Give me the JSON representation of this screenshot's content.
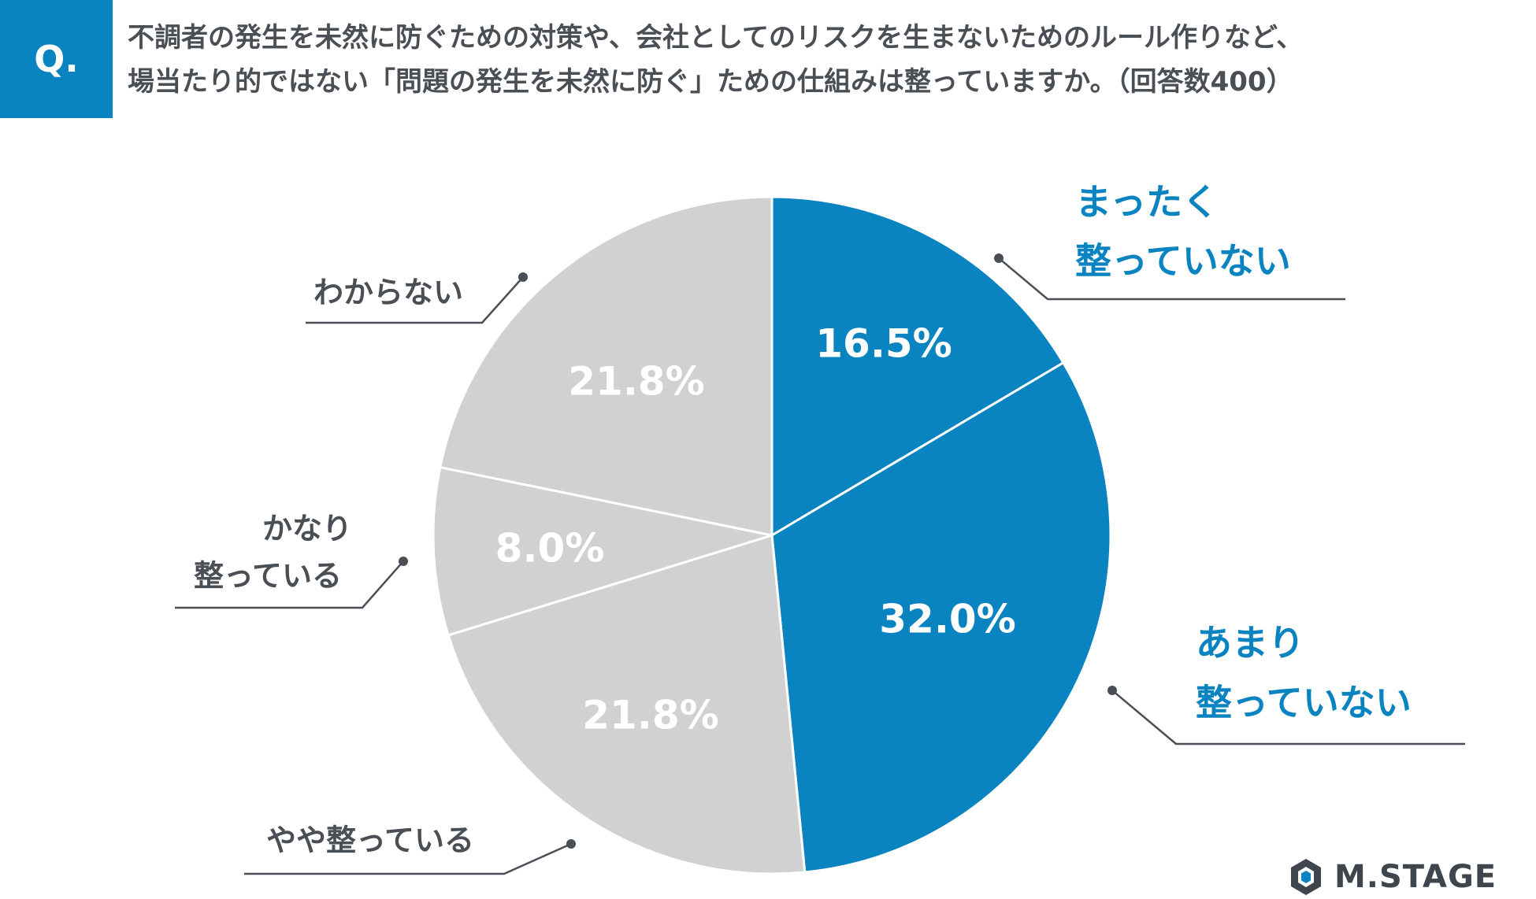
{
  "question": {
    "badge": "Q.",
    "line1": "不調者の発生を未然に防ぐための対策や、会社としてのリスクを生まないためのルール作りなど、",
    "line2": "場当たり的ではない「問題の発生を未然に防ぐ」ための仕組みは整っていますか。（回答数400）"
  },
  "colors": {
    "accent": "#0a84c0",
    "gray_slice": "#d2d1d2",
    "gray_text": "#4a4f55",
    "leader": "#4a4f55"
  },
  "chart_data": {
    "type": "pie",
    "start_angle_deg": 0,
    "direction": "clockwise",
    "slices": [
      {
        "label": [
          "まったく",
          "整っていない"
        ],
        "value": 16.5,
        "value_label": "16.5%",
        "color": "#0a84c0",
        "label_color": "#0a84c0"
      },
      {
        "label": [
          "あまり",
          "整っていない"
        ],
        "value": 32.0,
        "value_label": "32.0%",
        "color": "#0a84c0",
        "label_color": "#0a84c0"
      },
      {
        "label": [
          "やや整っている"
        ],
        "value": 21.8,
        "value_label": "21.8%",
        "color": "#d2d1d2",
        "label_color": "#4a4f55"
      },
      {
        "label": [
          "かなり",
          "整っている"
        ],
        "value": 8.0,
        "value_label": "8.0%",
        "color": "#d2d1d2",
        "label_color": "#4a4f55"
      },
      {
        "label": [
          "わからない"
        ],
        "value": 21.8,
        "value_label": "21.8%",
        "color": "#d2d1d2",
        "label_color": "#4a4f55"
      }
    ]
  },
  "logo": {
    "text": "M.STAGE",
    "icon": "hexagon-logo-icon"
  }
}
